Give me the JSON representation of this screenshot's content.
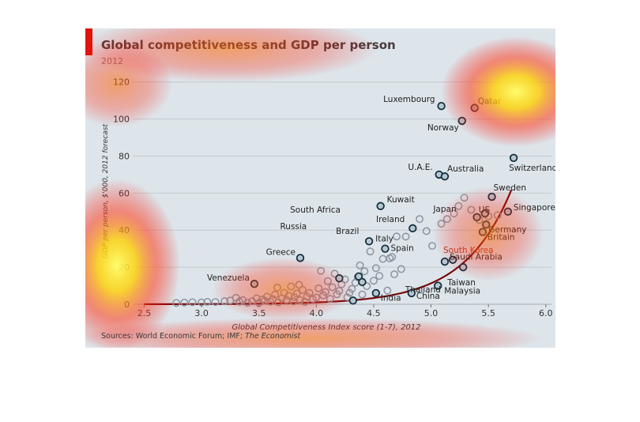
{
  "chart_data": {
    "type": "scatter",
    "title": "Global competitiveness and GDP per person",
    "subtitle": "2012",
    "xlabel": "Global Competitiveness Index score (1-7), 2012",
    "ylabel": "GDP per person, $'000, 2012 forecast",
    "xlim": [
      2.4,
      6.05
    ],
    "ylim": [
      0,
      122
    ],
    "x_ticks": [
      "2.5",
      "3.0",
      "3.5",
      "4.0",
      "4.5",
      "5.0",
      "5.5",
      "6.0"
    ],
    "y_ticks": [
      "0",
      "20",
      "40",
      "60",
      "80",
      "100",
      "120"
    ],
    "grid": true,
    "source": "Sources: World Economic Forum; IMF;",
    "source_italic": "The Economist",
    "labeled_points": [
      {
        "label": "Luxembourg",
        "x": 5.09,
        "y": 107
      },
      {
        "label": "Qatar",
        "x": 5.38,
        "y": 106
      },
      {
        "label": "Norway",
        "x": 5.27,
        "y": 99
      },
      {
        "label": "Switzerland",
        "x": 5.72,
        "y": 79
      },
      {
        "label": "U.A.E.",
        "x": 5.07,
        "y": 70
      },
      {
        "label": "Australia",
        "x": 5.12,
        "y": 69
      },
      {
        "label": "Sweden",
        "x": 5.53,
        "y": 58
      },
      {
        "label": "Kuwait",
        "x": 4.56,
        "y": 53
      },
      {
        "label": "Japan",
        "x": 5.4,
        "y": 47
      },
      {
        "label": "US",
        "x": 5.47,
        "y": 49
      },
      {
        "label": "Singapore",
        "x": 5.67,
        "y": 50
      },
      {
        "label": "Ireland",
        "x": 4.84,
        "y": 41
      },
      {
        "label": "Germany",
        "x": 5.48,
        "y": 43
      },
      {
        "label": "Britain",
        "x": 5.45,
        "y": 39
      },
      {
        "label": "Italy",
        "x": 4.46,
        "y": 34
      },
      {
        "label": "Spain",
        "x": 4.6,
        "y": 30
      },
      {
        "label": "Saudi Arabia",
        "x": 5.19,
        "y": 24
      },
      {
        "label": "South Korea",
        "x": 5.12,
        "y": 23
      },
      {
        "label": "Greece",
        "x": 3.86,
        "y": 25
      },
      {
        "label": "South Africa",
        "x": 4.37,
        "y": 15
      },
      {
        "label": "Russia",
        "x": 4.2,
        "y": 14
      },
      {
        "label": "Brazil",
        "x": 4.4,
        "y": 12
      },
      {
        "label": "Taiwan",
        "x": 5.28,
        "y": 20
      },
      {
        "label": "Venezuela",
        "x": 3.46,
        "y": 11
      },
      {
        "label": "Thailand",
        "x": 4.52,
        "y": 6
      },
      {
        "label": "Malaysia",
        "x": 5.06,
        "y": 10
      },
      {
        "label": "India",
        "x": 4.32,
        "y": 2
      },
      {
        "label": "China",
        "x": 4.83,
        "y": 6
      }
    ],
    "other_points": [
      [
        2.78,
        0.7
      ],
      [
        2.85,
        0.9
      ],
      [
        2.92,
        1.1
      ],
      [
        3.0,
        1.0
      ],
      [
        3.05,
        1.3
      ],
      [
        3.12,
        1.2
      ],
      [
        3.2,
        1.6
      ],
      [
        3.25,
        2.0
      ],
      [
        3.3,
        3.5
      ],
      [
        3.33,
        1.4
      ],
      [
        3.36,
        2.2
      ],
      [
        3.4,
        0.8
      ],
      [
        3.44,
        1.6
      ],
      [
        3.48,
        3.2
      ],
      [
        3.5,
        0.7
      ],
      [
        3.53,
        2.6
      ],
      [
        3.55,
        1.9
      ],
      [
        3.57,
        4.1
      ],
      [
        3.6,
        1.4
      ],
      [
        3.62,
        2.7
      ],
      [
        3.64,
        5.2
      ],
      [
        3.66,
        9.0
      ],
      [
        3.67,
        1.0
      ],
      [
        3.7,
        3.1
      ],
      [
        3.72,
        6.2
      ],
      [
        3.74,
        2.3
      ],
      [
        3.76,
        4.6
      ],
      [
        3.78,
        9.6
      ],
      [
        3.8,
        1.5
      ],
      [
        3.81,
        3.8
      ],
      [
        3.83,
        5.8
      ],
      [
        3.85,
        10.5
      ],
      [
        3.86,
        2.2
      ],
      [
        3.88,
        7.8
      ],
      [
        3.9,
        1.3
      ],
      [
        3.92,
        4.2
      ],
      [
        3.94,
        6.1
      ],
      [
        3.97,
        2.7
      ],
      [
        4.0,
        3.6
      ],
      [
        4.02,
        8.6
      ],
      [
        4.04,
        18
      ],
      [
        4.06,
        4.8
      ],
      [
        4.08,
        6.6
      ],
      [
        4.1,
        12.5
      ],
      [
        4.12,
        2.9
      ],
      [
        4.14,
        9.2
      ],
      [
        4.16,
        16.5
      ],
      [
        4.18,
        5.4
      ],
      [
        4.2,
        7.2
      ],
      [
        4.22,
        10.8
      ],
      [
        4.25,
        13.4
      ],
      [
        4.27,
        3.8
      ],
      [
        4.29,
        6.2
      ],
      [
        4.31,
        8.3
      ],
      [
        4.34,
        11.6
      ],
      [
        4.36,
        14.6
      ],
      [
        4.38,
        21
      ],
      [
        4.4,
        5.3
      ],
      [
        4.42,
        17.8
      ],
      [
        4.44,
        9.8
      ],
      [
        4.47,
        28.5
      ],
      [
        4.5,
        12.7
      ],
      [
        4.52,
        19.5
      ],
      [
        4.55,
        15.3
      ],
      [
        4.58,
        24.5
      ],
      [
        4.62,
        7.4
      ],
      [
        4.64,
        24.8
      ],
      [
        4.66,
        25.5
      ],
      [
        4.68,
        16.2
      ],
      [
        4.7,
        36.6
      ],
      [
        4.74,
        19
      ],
      [
        4.78,
        36.5
      ],
      [
        4.9,
        46
      ],
      [
        4.96,
        39.5
      ],
      [
        5.01,
        31.5
      ],
      [
        5.09,
        43.5
      ],
      [
        5.14,
        46
      ],
      [
        5.2,
        49
      ],
      [
        5.24,
        53
      ],
      [
        5.29,
        57.5
      ],
      [
        5.35,
        51
      ],
      [
        5.42,
        45.5
      ],
      [
        5.5,
        47.5
      ],
      [
        5.58,
        48
      ]
    ],
    "trendline_x_range": [
      2.5,
      5.7
    ]
  }
}
